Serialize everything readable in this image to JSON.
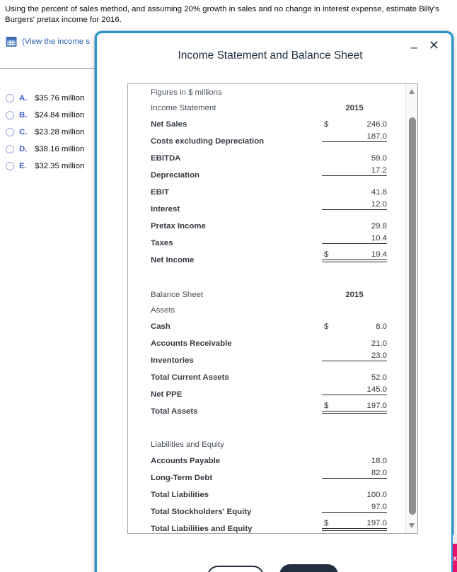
{
  "question": {
    "line1": "Using the percent of sales method, and assuming 20% growth in sales and no change in interest expense, estimate Billy's",
    "line2": "Burgers' pretax income for 2016."
  },
  "view_link": {
    "label": "(View the income s",
    "icon": "table-icon"
  },
  "options": [
    {
      "letter": "A.",
      "text": "$35.76 million"
    },
    {
      "letter": "B.",
      "text": "$24.84 million"
    },
    {
      "letter": "C.",
      "text": "$23.28 million"
    },
    {
      "letter": "D.",
      "text": "$38.16 million"
    },
    {
      "letter": "E.",
      "text": "$32.35 million"
    }
  ],
  "modal": {
    "title": "Income Statement and Balance Sheet",
    "minimize_label": "–",
    "close_label": "✕",
    "table": {
      "caption": "Figures in $ millions",
      "sections": [
        {
          "id": "income-statement",
          "title": "Income Statement",
          "year": "2015",
          "rows": [
            {
              "label": "Net Sales",
              "dollar": "$",
              "value": "246.0",
              "bold": true
            },
            {
              "label": "Costs excluding Depreciation",
              "value": "187.0",
              "bold": true,
              "underline": "single"
            },
            {
              "label": "EBITDA",
              "value": "59.0",
              "bold": true
            },
            {
              "label": "Depreciation",
              "value": "17.2",
              "bold": true,
              "underline": "single"
            },
            {
              "label": "EBIT",
              "value": "41.8",
              "bold": true
            },
            {
              "label": "Interest",
              "value": "12.0",
              "bold": true,
              "underline": "single"
            },
            {
              "label": "Pretax Income",
              "value": "29.8",
              "bold": true
            },
            {
              "label": "Taxes",
              "value": "10.4",
              "bold": true,
              "underline": "single"
            },
            {
              "label": "Net Income",
              "dollar": "$",
              "value": "19.4",
              "bold": true,
              "underline": "double"
            }
          ]
        },
        {
          "id": "balance-sheet",
          "title": "Balance Sheet",
          "year": "2015",
          "subheader": "Assets",
          "rows": [
            {
              "label": "Cash",
              "dollar": "$",
              "value": "8.0",
              "bold": true
            },
            {
              "label": "Accounts Receivable",
              "value": "21.0",
              "bold": true
            },
            {
              "label": "Inventories",
              "value": "23.0",
              "bold": true,
              "underline": "single"
            },
            {
              "label": "Total Current Assets",
              "value": "52.0",
              "bold": true
            },
            {
              "label": "Net PPE",
              "value": "145.0",
              "bold": true,
              "underline": "single"
            },
            {
              "label": "Total Assets",
              "dollar": "$",
              "value": "197.0",
              "bold": true,
              "underline": "double"
            }
          ]
        },
        {
          "id": "liabilities-equity",
          "subheader": "Liabilities and Equity",
          "rows": [
            {
              "label": "Accounts Payable",
              "value": "18.0",
              "bold": true
            },
            {
              "label": "Long-Term Debt",
              "value": "82.0",
              "bold": true,
              "underline": "single"
            },
            {
              "label": "Total Liabilities",
              "value": "100.0",
              "bold": true
            },
            {
              "label": "Total Stockholders' Equity",
              "value": "97.0",
              "bold": true,
              "underline": "single"
            },
            {
              "label": "Total Liabilities and Equity",
              "dollar": "$",
              "value": "197.0",
              "bold": true,
              "underline": "double"
            }
          ]
        }
      ]
    }
  },
  "footer": {
    "buttons": [
      {
        "name": "secondary-button",
        "label": ""
      },
      {
        "name": "primary-button",
        "label": ""
      }
    ]
  },
  "edge_tab": {
    "label": "X",
    "color": "#e8136e"
  },
  "colors": {
    "modal_border": "#2596d1",
    "link_blue": "#2a5db4",
    "option_letter_blue": "#3b5cc9",
    "dark_button": "#232f3e",
    "ribbon_pink": "#e8136e"
  }
}
